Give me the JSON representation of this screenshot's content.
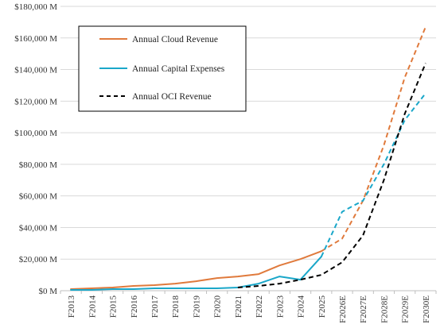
{
  "chart_data": {
    "type": "line",
    "title": "",
    "xlabel": "",
    "ylabel": "",
    "ylim": [
      0,
      180000
    ],
    "y_ticks": [
      {
        "value": 0,
        "label": "$0 M"
      },
      {
        "value": 20000,
        "label": "$20,000 M"
      },
      {
        "value": 40000,
        "label": "$40,000 M"
      },
      {
        "value": 60000,
        "label": "$60,000 M"
      },
      {
        "value": 80000,
        "label": "$80,000 M"
      },
      {
        "value": 100000,
        "label": "$100,000 M"
      },
      {
        "value": 120000,
        "label": "$120,000 M"
      },
      {
        "value": 140000,
        "label": "$140,000 M"
      },
      {
        "value": 160000,
        "label": "$160,000 M"
      },
      {
        "value": 180000,
        "label": "$180,000 M"
      }
    ],
    "categories": [
      "F2013",
      "F2014",
      "F2015",
      "F2016",
      "F2017",
      "F2018",
      "F2019",
      "F2020",
      "F2021",
      "F2022",
      "F2023",
      "F2024",
      "F2025",
      "F2026E",
      "F2027E",
      "F2028E",
      "F2029E",
      "F2030E"
    ],
    "grid": "horizontal",
    "legend_position": "top-left, inside plot",
    "series": [
      {
        "name": "Annual Cloud Revenue",
        "color": "#e07a3c",
        "style": "solid through F2025, dashed for estimates",
        "values": [
          1000,
          1500,
          2000,
          3000,
          3500,
          4500,
          6000,
          8000,
          9000,
          10500,
          16000,
          20000,
          25000,
          33000,
          57000,
          92000,
          135000,
          167000
        ]
      },
      {
        "name": "Annual Capital Expenses",
        "color": "#1aa7c9",
        "style": "solid through F2025, dashed for estimates",
        "values": [
          500,
          500,
          1000,
          1000,
          1500,
          1500,
          1500,
          1500,
          2000,
          4500,
          9000,
          7000,
          21500,
          50000,
          57000,
          80000,
          108000,
          125000
        ]
      },
      {
        "name": "Annual OCI Revenue",
        "color": "#000000",
        "style": "dashed",
        "values": [
          null,
          null,
          null,
          null,
          null,
          null,
          null,
          null,
          2000,
          3000,
          4500,
          7000,
          10000,
          18000,
          35000,
          70000,
          112000,
          144000
        ]
      }
    ]
  }
}
